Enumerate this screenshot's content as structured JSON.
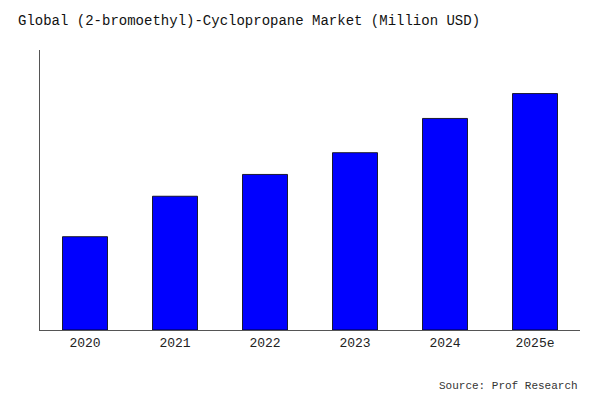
{
  "chart_data": {
    "type": "bar",
    "title": "Global (2-bromoethyl)-Cyclopropane Market (Million USD)",
    "categories": [
      "2020",
      "2021",
      "2022",
      "2023",
      "2024",
      "2025e"
    ],
    "values": [
      30,
      43,
      50,
      57,
      68,
      76
    ],
    "color": "#0000ff",
    "ylim": [
      0,
      90
    ],
    "grid": false,
    "tick_labels": "x",
    "annotation": "Source: Prof Research"
  }
}
